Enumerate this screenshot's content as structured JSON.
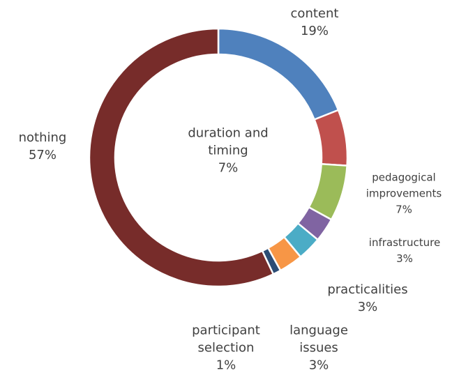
{
  "chart_data": {
    "type": "donut",
    "categories": [
      "content",
      "duration and timing",
      "pedagogical improvements",
      "infrastructure",
      "practicalities",
      "language issues",
      "participant selection",
      "nothing"
    ],
    "values": [
      19,
      7,
      7,
      3,
      3,
      3,
      1,
      57
    ],
    "value_labels": [
      "19%",
      "7%",
      "7%",
      "3%",
      "3%",
      "3%",
      "1%",
      "57%"
    ],
    "colors": [
      "#4f81bd",
      "#c0504d",
      "#9bbb59",
      "#8064a2",
      "#4bacc6",
      "#f79646",
      "#2c4d75",
      "#772c2a"
    ]
  }
}
